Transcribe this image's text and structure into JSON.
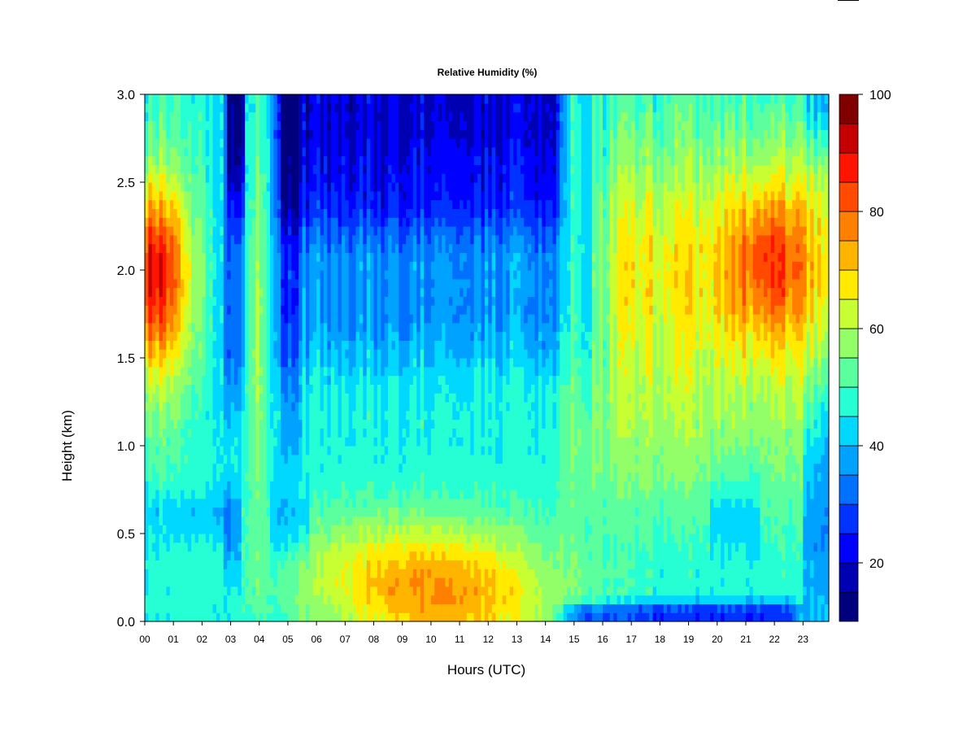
{
  "chart_data": {
    "type": "heatmap",
    "title": "Relative Humidity (%)",
    "xlabel": "Hours (UTC)",
    "ylabel": "Height (km)",
    "x_ticks": [
      "00",
      "01",
      "02",
      "03",
      "04",
      "05",
      "06",
      "07",
      "08",
      "09",
      "10",
      "11",
      "12",
      "13",
      "14",
      "15",
      "16",
      "17",
      "18",
      "19",
      "20",
      "21",
      "22",
      "23"
    ],
    "y_ticks": [
      "0.0",
      "0.5",
      "1.0",
      "1.5",
      "2.0",
      "2.5",
      "3.0"
    ],
    "xlim": [
      0,
      23.9
    ],
    "ylim": [
      0,
      3.0
    ],
    "colorbar": {
      "range": [
        10,
        100
      ],
      "step": 5,
      "tick_values": [
        20,
        40,
        60,
        80,
        100
      ],
      "tick_labels": [
        "20",
        "40",
        "60",
        "80",
        "100"
      ],
      "colors": [
        "#00007f",
        "#0000b3",
        "#0000ff",
        "#0033ff",
        "#0070ff",
        "#00a2ff",
        "#00d8ff",
        "#26ffd4",
        "#5cff9e",
        "#92ff68",
        "#c8ff32",
        "#ffea00",
        "#ffb500",
        "#ff8000",
        "#ff4a00",
        "#ff1400",
        "#c40000",
        "#800000"
      ]
    },
    "grid": {
      "columns": 192,
      "rows": 60,
      "hour_step": 0.125,
      "height_step_km": 0.05
    },
    "regions": {
      "upper_dry_layer": {
        "hours": [
          4.5,
          14.5
        ],
        "height_km": [
          2.4,
          3.0
        ],
        "rh_percent": 18
      },
      "evening_moist_layer": {
        "hours": [
          20.5,
          23.3
        ],
        "height_km": [
          1.5,
          2.5
        ],
        "rh_percent": 85
      },
      "early_moist_layer": {
        "hours": [
          0.0,
          1.5
        ],
        "height_km": [
          1.6,
          2.4
        ],
        "rh_percent": 80
      },
      "midday_surface_moist": {
        "hours": [
          9.0,
          13.5
        ],
        "height_km": [
          0.0,
          0.4
        ],
        "rh_percent": 70
      },
      "afternoon_surface_dry": {
        "hours": [
          14.5,
          23.0
        ],
        "height_km": [
          0.0,
          0.1
        ],
        "rh_percent": 28
      }
    }
  }
}
